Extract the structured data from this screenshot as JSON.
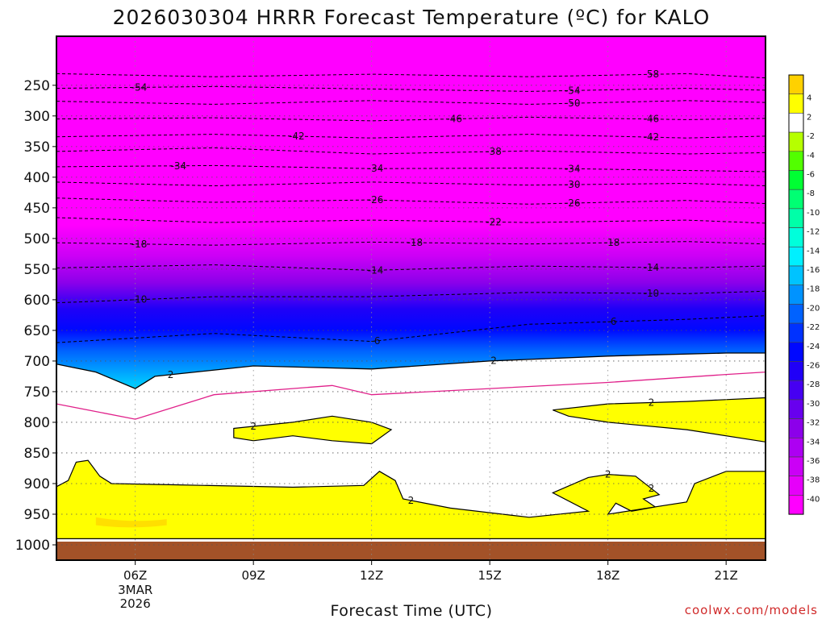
{
  "chart_data": {
    "type": "contour-filled",
    "title": "2026030304 HRRR Forecast Temperature (ºC) for KALO",
    "xlabel": "Forecast Time (UTC)",
    "ylabel": "",
    "credit": "coolwx.com/models",
    "x_axis": {
      "units": "hours UTC",
      "range": [
        4,
        22
      ],
      "ticks": [
        {
          "hour": 6,
          "label": "06Z",
          "sub1": "3MAR",
          "sub2": "2026"
        },
        {
          "hour": 9,
          "label": "09Z"
        },
        {
          "hour": 12,
          "label": "12Z"
        },
        {
          "hour": 15,
          "label": "15Z"
        },
        {
          "hour": 18,
          "label": "18Z"
        },
        {
          "hour": 21,
          "label": "21Z"
        }
      ]
    },
    "y_axis": {
      "units": "hPa",
      "range": [
        1025,
        170
      ],
      "ticks": [
        250,
        300,
        350,
        400,
        450,
        500,
        550,
        600,
        650,
        700,
        750,
        800,
        850,
        900,
        950,
        1000
      ]
    },
    "surface_pressure_hPa": 990,
    "freezing_line": {
      "color": "#e0208a",
      "points": [
        [
          4.0,
          770
        ],
        [
          6.0,
          795
        ],
        [
          8.0,
          755
        ],
        [
          11.0,
          740
        ],
        [
          12.0,
          755
        ],
        [
          15.0,
          745
        ],
        [
          18.0,
          735
        ],
        [
          21.0,
          722
        ],
        [
          22.0,
          718
        ]
      ]
    },
    "isotherms": [
      {
        "value": -58,
        "points": [
          [
            4,
            231
          ],
          [
            8,
            236
          ],
          [
            12,
            232
          ],
          [
            16,
            236
          ],
          [
            20,
            231
          ],
          [
            22,
            238
          ]
        ],
        "labels": [
          {
            "hour": 19.1,
            "text": "-58"
          }
        ]
      },
      {
        "value": -54,
        "points": [
          [
            4,
            255
          ],
          [
            8,
            252
          ],
          [
            12,
            256
          ],
          [
            16,
            260
          ],
          [
            20,
            255
          ],
          [
            22,
            258
          ]
        ],
        "labels": [
          {
            "hour": 6.1,
            "text": "-54"
          },
          {
            "hour": 17.1,
            "text": "-54"
          }
        ]
      },
      {
        "value": -50,
        "points": [
          [
            4,
            276
          ],
          [
            8,
            281
          ],
          [
            12,
            275
          ],
          [
            16,
            281
          ],
          [
            20,
            275
          ],
          [
            22,
            278
          ]
        ],
        "labels": [
          {
            "hour": 17.1,
            "text": "-50"
          }
        ]
      },
      {
        "value": -46,
        "points": [
          [
            4,
            305
          ],
          [
            8,
            303
          ],
          [
            12,
            308
          ],
          [
            16,
            302
          ],
          [
            20,
            306
          ],
          [
            22,
            304
          ]
        ],
        "labels": [
          {
            "hour": 14.1,
            "text": "-46"
          },
          {
            "hour": 19.1,
            "text": "-46"
          }
        ]
      },
      {
        "value": -42,
        "points": [
          [
            4,
            334
          ],
          [
            8,
            330
          ],
          [
            12,
            336
          ],
          [
            16,
            330
          ],
          [
            20,
            336
          ],
          [
            22,
            333
          ]
        ],
        "labels": [
          {
            "hour": 10.1,
            "text": "-42"
          },
          {
            "hour": 19.1,
            "text": "-42"
          }
        ]
      },
      {
        "value": -38,
        "points": [
          [
            4,
            358
          ],
          [
            8,
            352
          ],
          [
            12,
            362
          ],
          [
            16,
            357
          ],
          [
            20,
            362
          ],
          [
            22,
            360
          ]
        ],
        "labels": [
          {
            "hour": 15.1,
            "text": "-38"
          }
        ]
      },
      {
        "value": -34,
        "points": [
          [
            4,
            383
          ],
          [
            8,
            381
          ],
          [
            12,
            386
          ],
          [
            16,
            385
          ],
          [
            20,
            389
          ],
          [
            22,
            391
          ]
        ],
        "labels": [
          {
            "hour": 7.1,
            "text": "-34"
          },
          {
            "hour": 12.1,
            "text": "-34"
          },
          {
            "hour": 17.1,
            "text": "-34"
          }
        ]
      },
      {
        "value": -30,
        "points": [
          [
            4,
            408
          ],
          [
            8,
            414
          ],
          [
            12,
            408
          ],
          [
            16,
            413
          ],
          [
            20,
            410
          ],
          [
            22,
            414
          ]
        ],
        "labels": [
          {
            "hour": 17.1,
            "text": "-30"
          }
        ]
      },
      {
        "value": -26,
        "points": [
          [
            4,
            434
          ],
          [
            8,
            441
          ],
          [
            12,
            437
          ],
          [
            16,
            444
          ],
          [
            20,
            438
          ],
          [
            22,
            443
          ]
        ],
        "labels": [
          {
            "hour": 12.1,
            "text": "-26"
          },
          {
            "hour": 17.1,
            "text": "-26"
          }
        ]
      },
      {
        "value": -22,
        "points": [
          [
            4,
            466
          ],
          [
            8,
            474
          ],
          [
            12,
            470
          ],
          [
            16,
            474
          ],
          [
            20,
            470
          ],
          [
            22,
            475
          ]
        ],
        "labels": [
          {
            "hour": 15.1,
            "text": "-22"
          }
        ]
      },
      {
        "value": -18,
        "points": [
          [
            4,
            507
          ],
          [
            8,
            511
          ],
          [
            12,
            506
          ],
          [
            16,
            509
          ],
          [
            20,
            505
          ],
          [
            22,
            509
          ]
        ],
        "labels": [
          {
            "hour": 6.1,
            "text": "-18"
          },
          {
            "hour": 13.1,
            "text": "-18"
          },
          {
            "hour": 18.1,
            "text": "-18"
          }
        ]
      },
      {
        "value": -14,
        "points": [
          [
            4,
            548
          ],
          [
            8,
            543
          ],
          [
            12,
            552
          ],
          [
            16,
            545
          ],
          [
            20,
            548
          ],
          [
            22,
            545
          ]
        ],
        "labels": [
          {
            "hour": 12.1,
            "text": "-14"
          },
          {
            "hour": 19.1,
            "text": "-14"
          }
        ]
      },
      {
        "value": -10,
        "points": [
          [
            4,
            605
          ],
          [
            8,
            595
          ],
          [
            12,
            595
          ],
          [
            16,
            588
          ],
          [
            20,
            590
          ],
          [
            22,
            586
          ]
        ],
        "labels": [
          {
            "hour": 6.1,
            "text": "-10"
          },
          {
            "hour": 19.1,
            "text": "-10"
          }
        ]
      },
      {
        "value": -6,
        "points": [
          [
            4,
            670
          ],
          [
            8,
            655
          ],
          [
            12,
            668
          ],
          [
            16,
            640
          ],
          [
            20,
            632
          ],
          [
            22,
            626
          ]
        ],
        "labels": [
          {
            "hour": 12.1,
            "text": "-6"
          },
          {
            "hour": 18.1,
            "text": "-6"
          }
        ]
      },
      {
        "value": 2,
        "points": [
          [
            4,
            705
          ],
          [
            5,
            718
          ],
          [
            6,
            745
          ],
          [
            6.5,
            725
          ],
          [
            9,
            708
          ],
          [
            12,
            713
          ],
          [
            15,
            700
          ],
          [
            18,
            692
          ],
          [
            21,
            687
          ],
          [
            22,
            687
          ]
        ],
        "labels": [
          {
            "hour": 6.9,
            "text": "2"
          },
          {
            "hour": 15.1,
            "text": "2"
          }
        ]
      }
    ],
    "warm_pockets": [
      {
        "value": 2,
        "points": [
          [
            8.5,
            810
          ],
          [
            10,
            800
          ],
          [
            11,
            790
          ],
          [
            12,
            800
          ],
          [
            12.5,
            812
          ],
          [
            12.0,
            835
          ],
          [
            11,
            830
          ],
          [
            10,
            822
          ],
          [
            9,
            830
          ],
          [
            8.5,
            825
          ]
        ],
        "labels": [
          {
            "hour": 9.0,
            "text": "2"
          }
        ]
      },
      {
        "value": 2,
        "points": [
          [
            16.6,
            780
          ],
          [
            18,
            770
          ],
          [
            20,
            766
          ],
          [
            22,
            760
          ],
          [
            22,
            832
          ],
          [
            20,
            812
          ],
          [
            18,
            800
          ],
          [
            17,
            790
          ]
        ],
        "labels": [
          {
            "hour": 19.1,
            "text": "2"
          }
        ]
      }
    ],
    "lower_warm_layer": {
      "value": 2,
      "points": [
        [
          4,
          905
        ],
        [
          4.3,
          895
        ],
        [
          4.5,
          865
        ],
        [
          4.8,
          862
        ],
        [
          5.1,
          888
        ],
        [
          5.4,
          900
        ],
        [
          7,
          902
        ],
        [
          10,
          906
        ],
        [
          11.8,
          903
        ],
        [
          12.2,
          880
        ],
        [
          12.6,
          895
        ],
        [
          12.8,
          925
        ],
        [
          14,
          940
        ],
        [
          16,
          955
        ],
        [
          17.5,
          945
        ],
        [
          16.6,
          915
        ],
        [
          17.5,
          890
        ],
        [
          18.0,
          885
        ],
        [
          18.7,
          888
        ],
        [
          19.3,
          918
        ],
        [
          18.9,
          925
        ],
        [
          19.2,
          938
        ],
        [
          18.6,
          945
        ],
        [
          18.2,
          932
        ],
        [
          18.0,
          950
        ],
        [
          20.0,
          930
        ],
        [
          20.2,
          900
        ],
        [
          21,
          880
        ],
        [
          22,
          880
        ],
        [
          22,
          990
        ],
        [
          4,
          990
        ]
      ],
      "labels": [
        {
          "hour": 13.0,
          "text": "2"
        },
        {
          "hour": 18.0,
          "text": "2"
        },
        {
          "hour": 19.1,
          "text": "2"
        }
      ]
    },
    "colorbar": {
      "units": "ºC",
      "levels": [
        {
          "label": "",
          "color": "#ffd100"
        },
        {
          "label": "4",
          "color": "#ffff00"
        },
        {
          "label": "2",
          "color": "#ffffff"
        },
        {
          "label": "-2",
          "color": "#b6ff00"
        },
        {
          "label": "-4",
          "color": "#52ff00"
        },
        {
          "label": "-6",
          "color": "#00ff33"
        },
        {
          "label": "-8",
          "color": "#00ff73"
        },
        {
          "label": "-10",
          "color": "#00ffa8"
        },
        {
          "label": "-12",
          "color": "#00ffdb"
        },
        {
          "label": "-14",
          "color": "#00f0ff"
        },
        {
          "label": "-16",
          "color": "#00c3ff"
        },
        {
          "label": "-18",
          "color": "#0093ff"
        },
        {
          "label": "-20",
          "color": "#0062ff"
        },
        {
          "label": "-22",
          "color": "#0032ff"
        },
        {
          "label": "-24",
          "color": "#0008ff"
        },
        {
          "label": "-26",
          "color": "#2000f7"
        },
        {
          "label": "-28",
          "color": "#4600f2"
        },
        {
          "label": "-30",
          "color": "#6800ee"
        },
        {
          "label": "-32",
          "color": "#8c00ea"
        },
        {
          "label": "-34",
          "color": "#ad00f2"
        },
        {
          "label": "-36",
          "color": "#cb00f6"
        },
        {
          "label": "-38",
          "color": "#e600fa"
        },
        {
          "label": "-40",
          "color": "#ff00ff"
        }
      ]
    }
  },
  "colors": {
    "ground": "#a35228",
    "background": "#ffffff",
    "top_magenta": "#ff00ff",
    "warm_yellow": "#ffff00"
  }
}
